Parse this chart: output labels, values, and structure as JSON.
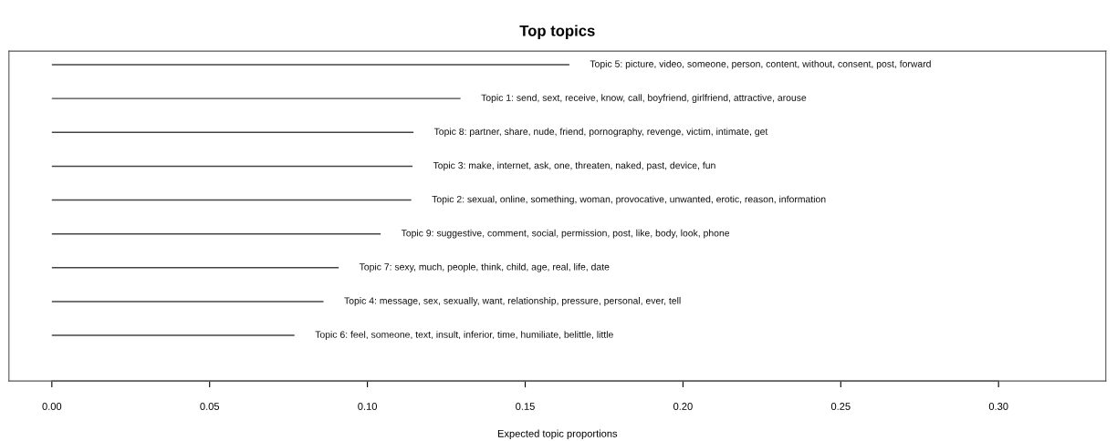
{
  "chart_data": {
    "type": "bar",
    "orientation": "horizontal",
    "title": "Top topics",
    "xlabel": "Expected topic proportions",
    "categories": [
      "Topic 5: picture, video, someone, person, content, without, consent, post, forward",
      "Topic 1: send, sext, receive, know, call, boyfriend, girlfriend, attractive, arouse",
      "Topic 8: partner, share, nude, friend, pornography, revenge, victim, intimate, get",
      "Topic 3: make, internet, ask, one, threaten, naked, past, device, fun",
      "Topic 2: sexual, online, something, woman, provocative, unwanted, erotic, reason, information",
      "Topic 9: suggestive, comment, social, permission, post, like, body, look, phone",
      "Topic 7: sexy, much, people, think, child, age, real, life, date",
      "Topic 4: message, sex, sexually, want, relationship, pressure, personal, ever, tell",
      "Topic 6: feel, someone, text, insult, inferior, time, humiliate, belittle, little"
    ],
    "values": [
      0.164,
      0.1295,
      0.1146,
      0.1143,
      0.1139,
      0.1042,
      0.0909,
      0.0861,
      0.0769
    ],
    "color": "#444444",
    "xlim": [
      -0.0136,
      0.334
    ],
    "xticks": [
      {
        "value": 0,
        "label": "0.00"
      },
      0.05,
      {
        "value": 0.1,
        "label": "0.10"
      },
      0.15,
      {
        "value": 0.2,
        "label": "0.20"
      },
      0.25,
      {
        "value": 0.3,
        "label": "0.30"
      }
    ],
    "tick_labels": "x",
    "grid": false,
    "legend": false
  }
}
